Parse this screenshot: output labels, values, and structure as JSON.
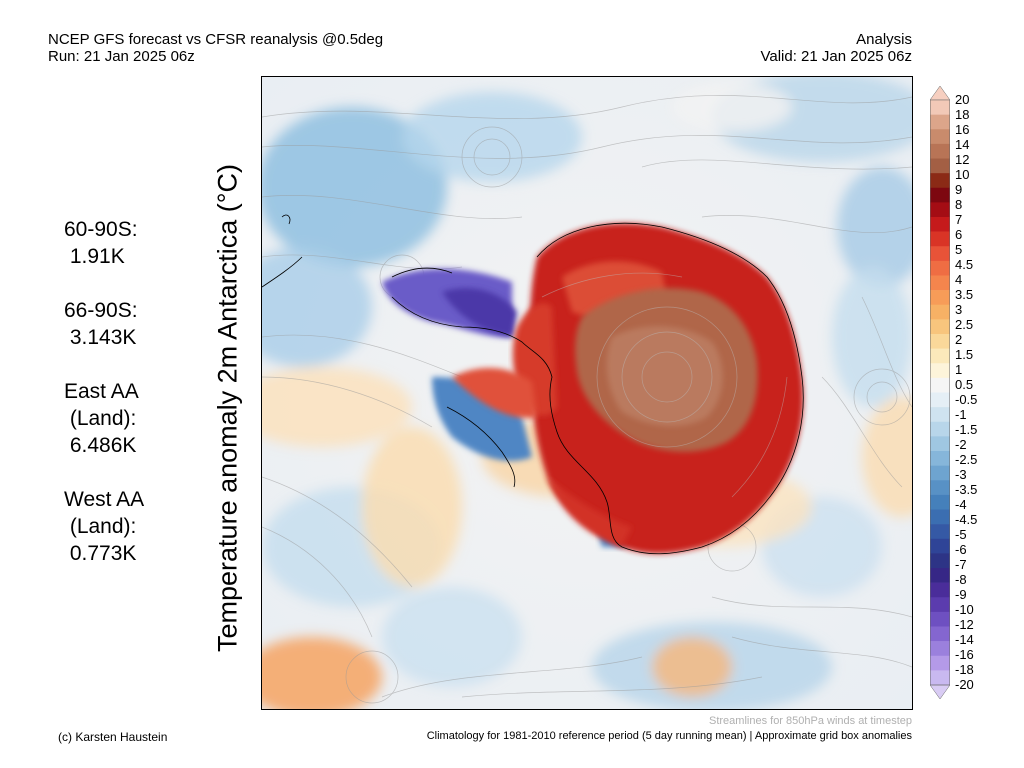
{
  "header": {
    "title": "NCEP GFS forecast vs CFSR reanalysis @0.5deg",
    "run": "Run: 21 Jan 2025 06z",
    "mode": "Analysis",
    "valid": "Valid: 21 Jan 2025 06z"
  },
  "stats": [
    {
      "label": "60-90S:\n 1.91K"
    },
    {
      "label": "66-90S:\n 3.143K"
    },
    {
      "label": "East AA\n (Land):\n 6.486K"
    },
    {
      "label": "West AA\n (Land):\n 0.773K"
    }
  ],
  "map": {
    "ylabel": "Temperature anomaly 2m Antarctica (°C)"
  },
  "colorbar": {
    "ticks": [
      "20",
      "18",
      "16",
      "14",
      "12",
      "10",
      "9",
      "8",
      "7",
      "6",
      "5",
      "4.5",
      "4",
      "3.5",
      "3",
      "2.5",
      "2",
      "1.5",
      "1",
      "0.5",
      "-0.5",
      "-1",
      "-1.5",
      "-2",
      "-2.5",
      "-3",
      "-3.5",
      "-4",
      "-4.5",
      "-5",
      "-6",
      "-7",
      "-8",
      "-9",
      "-10",
      "-12",
      "-14",
      "-16",
      "-18",
      "-20"
    ],
    "colors": [
      "#f2c9b7",
      "#dca58a",
      "#c98b6c",
      "#b87456",
      "#a35f44",
      "#8b2a16",
      "#7d0710",
      "#a40d14",
      "#c51a1b",
      "#d93426",
      "#e85338",
      "#ef6d43",
      "#f4854d",
      "#f79c58",
      "#f7b165",
      "#f8c57d",
      "#fad89a",
      "#fbe9bb",
      "#fdf4da",
      "#f5f5f5",
      "#e5eff6",
      "#cfe3f0",
      "#b8d6ea",
      "#9fc7e2",
      "#86b6da",
      "#6ea4d0",
      "#5891c5",
      "#4580bb",
      "#3b6eb1",
      "#3559a5",
      "#2f4497",
      "#2d3486",
      "#362786",
      "#4a2d9a",
      "#5b3cae",
      "#6e50c1",
      "#8466d0",
      "#9b80dd",
      "#b49ae8",
      "#c9b9f0"
    ],
    "top_color": "#f6cfc0",
    "bottom_color": "#d9ccf4"
  },
  "footer": {
    "credit": "(c) Karsten Haustein",
    "streamlines": "Streamlines for 850hPa winds at timestep",
    "climatology": "Climatology for 1981-2010 reference period (5 day running mean) | Approximate grid box anomalies"
  }
}
